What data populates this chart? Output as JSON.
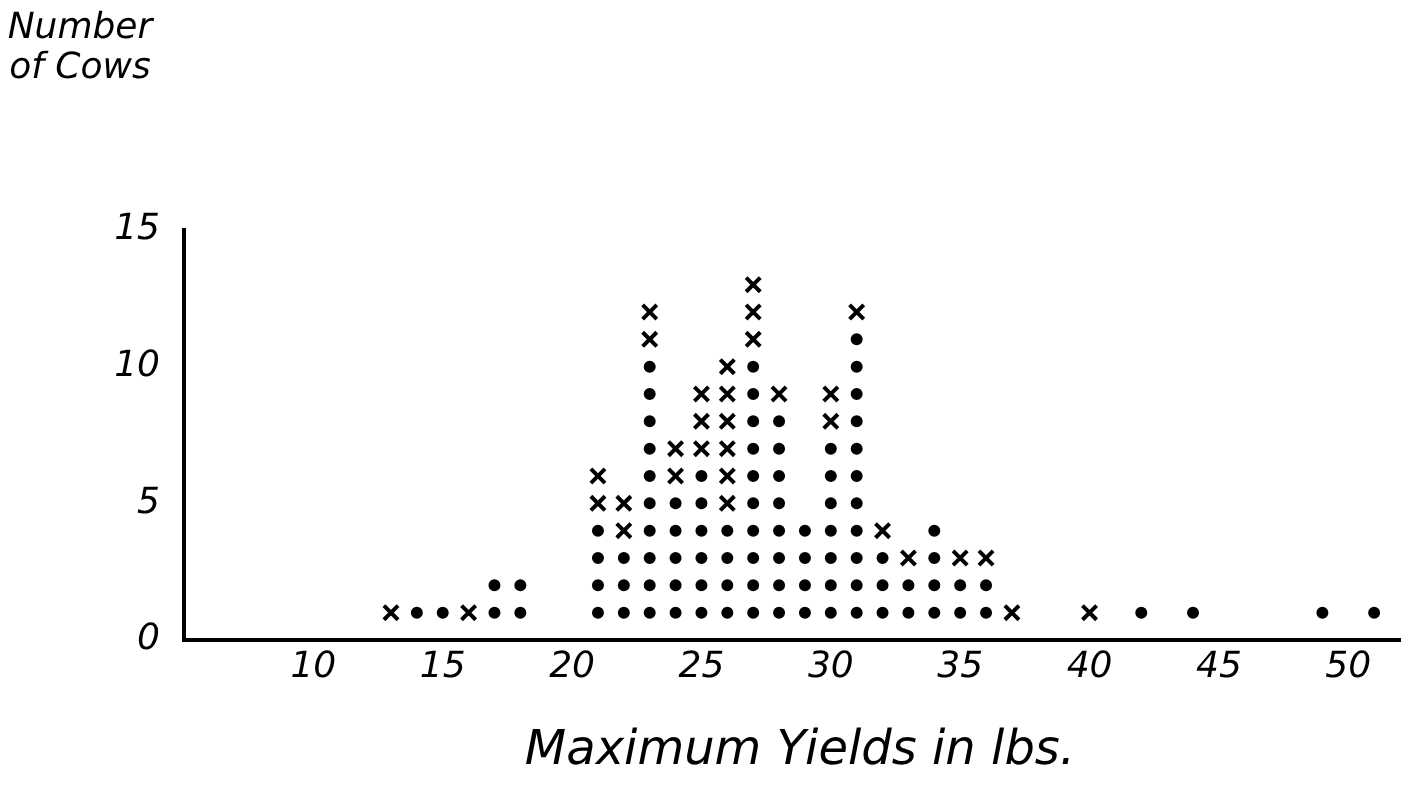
{
  "chart_data": {
    "type": "scatter",
    "ylabel": "Number of Cows",
    "xlabel": "Maximum Yields in lbs.",
    "xlim": [
      5,
      52
    ],
    "xticks": [
      10,
      15,
      20,
      25,
      30,
      35,
      40,
      45,
      50
    ],
    "ylim": [
      0,
      15
    ],
    "yticks": [
      0,
      5,
      10,
      15
    ],
    "series": [
      {
        "color": "#000000",
        "marker": "circle",
        "x": [
          14,
          15,
          17,
          17,
          18,
          18,
          21,
          21,
          21,
          21,
          22,
          22,
          22,
          23,
          23,
          23,
          23,
          23,
          23,
          23,
          23,
          23,
          23,
          24,
          24,
          24,
          24,
          24,
          25,
          25,
          25,
          25,
          25,
          25,
          26,
          26,
          26,
          26,
          27,
          27,
          27,
          27,
          27,
          27,
          27,
          27,
          27,
          27,
          28,
          28,
          28,
          28,
          28,
          28,
          28,
          28,
          29,
          29,
          29,
          29,
          30,
          30,
          30,
          30,
          30,
          30,
          30,
          31,
          31,
          31,
          31,
          31,
          31,
          31,
          31,
          31,
          31,
          31,
          32,
          32,
          32,
          33,
          33,
          34,
          34,
          34,
          34,
          35,
          35,
          36,
          36,
          42,
          44,
          49,
          51
        ],
        "values": [
          1,
          1,
          1,
          2,
          1,
          2,
          1,
          2,
          3,
          4,
          1,
          2,
          3,
          1,
          2,
          3,
          4,
          5,
          6,
          7,
          8,
          9,
          10,
          1,
          2,
          3,
          4,
          5,
          1,
          2,
          3,
          4,
          5,
          6,
          1,
          2,
          3,
          4,
          1,
          2,
          3,
          4,
          5,
          6,
          7,
          8,
          9,
          10,
          1,
          2,
          3,
          4,
          5,
          6,
          7,
          8,
          1,
          2,
          3,
          4,
          1,
          2,
          3,
          4,
          5,
          6,
          7,
          1,
          2,
          3,
          4,
          5,
          6,
          7,
          8,
          9,
          10,
          11,
          1,
          2,
          3,
          1,
          2,
          1,
          2,
          3,
          4,
          1,
          2,
          1,
          2,
          1,
          1,
          1,
          1
        ]
      },
      {
        "color": "#000000",
        "marker": "cross",
        "x": [
          13,
          16,
          21,
          21,
          22,
          22,
          23,
          23,
          24,
          24,
          25,
          25,
          25,
          26,
          26,
          26,
          26,
          26,
          26,
          27,
          27,
          27,
          28,
          30,
          30,
          31,
          32,
          33,
          35,
          36,
          37,
          40
        ],
        "values": [
          1,
          1,
          5,
          6,
          4,
          5,
          11,
          12,
          6,
          7,
          7,
          8,
          9,
          5,
          6,
          7,
          8,
          9,
          10,
          11,
          12,
          13,
          9,
          8,
          9,
          12,
          4,
          3,
          3,
          3,
          1,
          1
        ]
      }
    ]
  }
}
